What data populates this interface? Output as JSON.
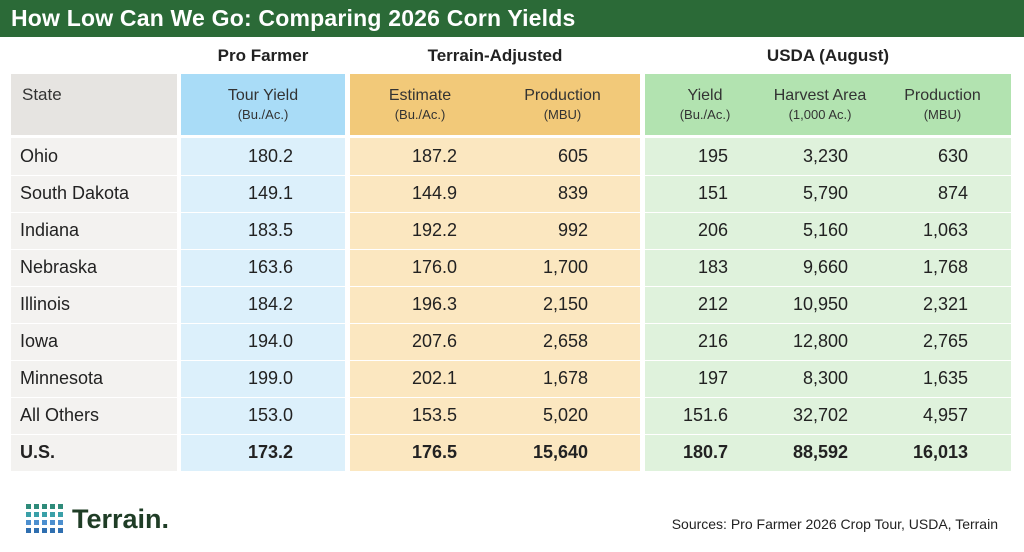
{
  "title": "How Low Can We Go: Comparing 2026 Corn Yields",
  "groups": {
    "pro_farmer": "Pro Farmer",
    "terrain": "Terrain-Adjusted",
    "usda": "USDA (August)"
  },
  "headers": {
    "state": "State",
    "tour_yield": "Tour Yield",
    "tour_yield_unit": "(Bu./Ac.)",
    "estimate": "Estimate",
    "estimate_unit": "(Bu./Ac.)",
    "t_production": "Production",
    "t_production_unit": "(MBU)",
    "yield": "Yield",
    "yield_unit": "(Bu./Ac.)",
    "harvest_area": "Harvest Area",
    "harvest_area_unit": "(1,000 Ac.)",
    "u_production": "Production",
    "u_production_unit": "(MBU)"
  },
  "colors": {
    "title_bar": "#2b6a37",
    "header_gray": "#e6e4e1",
    "body_gray": "#f3f2f0",
    "header_blue": "#a9dcf7",
    "body_blue": "#dcf0fb",
    "header_orange": "#f2c979",
    "body_orange": "#fbe7c0",
    "header_green": "#b2e3b0",
    "body_green": "#dff2dc"
  },
  "chart_data": {
    "type": "table",
    "title": "How Low Can We Go: Comparing 2026 Corn Yields",
    "columns": [
      "State",
      "Tour Yield (Bu./Ac.)",
      "Estimate (Bu./Ac.)",
      "Production (MBU)",
      "Yield (Bu./Ac.)",
      "Harvest Area (1,000 Ac.)",
      "Production (MBU)"
    ],
    "rows": [
      {
        "state": "Ohio",
        "tour_yield": "180.2",
        "estimate": "187.2",
        "t_production": "605",
        "usda_yield": "195",
        "harvest_area": "3,230",
        "usda_production": "630"
      },
      {
        "state": "South Dakota",
        "tour_yield": "149.1",
        "estimate": "144.9",
        "t_production": "839",
        "usda_yield": "151",
        "harvest_area": "5,790",
        "usda_production": "874"
      },
      {
        "state": "Indiana",
        "tour_yield": "183.5",
        "estimate": "192.2",
        "t_production": "992",
        "usda_yield": "206",
        "harvest_area": "5,160",
        "usda_production": "1,063"
      },
      {
        "state": "Nebraska",
        "tour_yield": "163.6",
        "estimate": "176.0",
        "t_production": "1,700",
        "usda_yield": "183",
        "harvest_area": "9,660",
        "usda_production": "1,768"
      },
      {
        "state": "Illinois",
        "tour_yield": "184.2",
        "estimate": "196.3",
        "t_production": "2,150",
        "usda_yield": "212",
        "harvest_area": "10,950",
        "usda_production": "2,321"
      },
      {
        "state": "Iowa",
        "tour_yield": "194.0",
        "estimate": "207.6",
        "t_production": "2,658",
        "usda_yield": "216",
        "harvest_area": "12,800",
        "usda_production": "2,765"
      },
      {
        "state": "Minnesota",
        "tour_yield": "199.0",
        "estimate": "202.1",
        "t_production": "1,678",
        "usda_yield": "197",
        "harvest_area": "8,300",
        "usda_production": "1,635"
      },
      {
        "state": "All Others",
        "tour_yield": "153.0",
        "estimate": "153.5",
        "t_production": "5,020",
        "usda_yield": "151.6",
        "harvest_area": "32,702",
        "usda_production": "4,957"
      },
      {
        "state": "U.S.",
        "tour_yield": "173.2",
        "estimate": "176.5",
        "t_production": "15,640",
        "usda_yield": "180.7",
        "harvest_area": "88,592",
        "usda_production": "16,013"
      }
    ]
  },
  "footer": {
    "logo_text": "Terrain.",
    "sources": "Sources: Pro Farmer 2026 Crop Tour, USDA, Terrain"
  }
}
